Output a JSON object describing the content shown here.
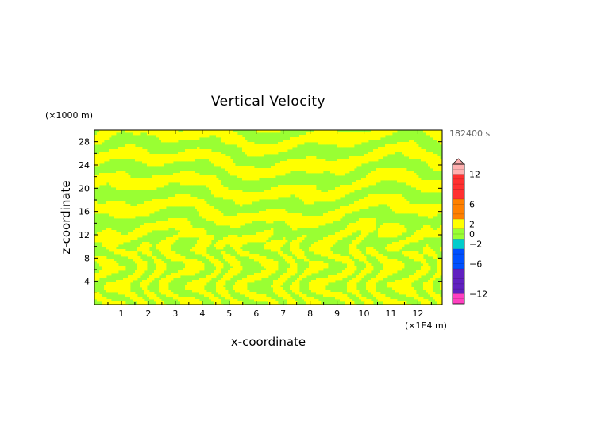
{
  "chart_data": {
    "type": "heatmap",
    "title": "Vertical Velocity",
    "xlabel": "x-coordinate",
    "ylabel": "z-coordinate",
    "x_unit": "(×1E4 m)",
    "y_unit": "(×1000 m)",
    "time_label": "182400 s",
    "x_ticks": [
      "1",
      "2",
      "3",
      "4",
      "5",
      "6",
      "7",
      "8",
      "9",
      "10",
      "11",
      "12"
    ],
    "y_ticks": [
      "4",
      "8",
      "12",
      "16",
      "20",
      "24",
      "28"
    ],
    "xlim": [
      0,
      12.9
    ],
    "ylim": [
      0,
      30
    ],
    "grid": false,
    "legend": "right",
    "colorbar": {
      "tick_labels": [
        "12",
        "6",
        "2",
        "0",
        "−2",
        "−6",
        "−12"
      ],
      "tick_values": [
        12,
        6,
        2,
        0,
        -2,
        -6,
        -12
      ],
      "range": [
        -14,
        14
      ],
      "colors": {
        "positive_extreme": "#ffb0b0",
        "positive_strong": "#ff3030",
        "positive_mid": "#ff8000",
        "positive_weak": "#ffff00",
        "near_zero": "#99ff33",
        "negative_weak": "#00cccc",
        "negative_mid": "#0050ff",
        "negative_strong": "#6020c0",
        "negative_extreme": "#ff40c0"
      }
    },
    "field_colors": {
      "positive": "#ffff00",
      "negative": "#99ff33"
    }
  }
}
